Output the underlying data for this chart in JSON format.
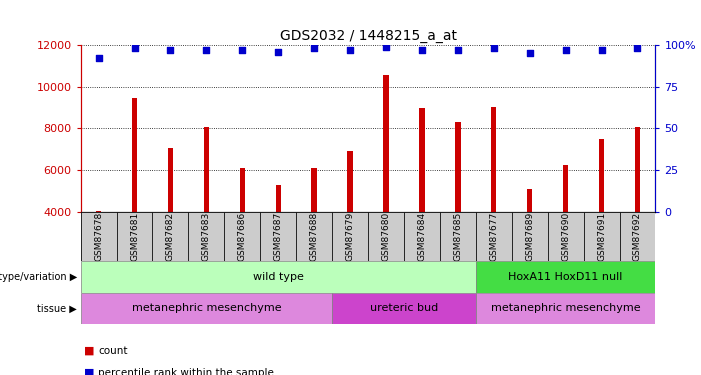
{
  "title": "GDS2032 / 1448215_a_at",
  "samples": [
    "GSM87678",
    "GSM87681",
    "GSM87682",
    "GSM87683",
    "GSM87686",
    "GSM87687",
    "GSM87688",
    "GSM87679",
    "GSM87680",
    "GSM87684",
    "GSM87685",
    "GSM87677",
    "GSM87689",
    "GSM87690",
    "GSM87691",
    "GSM87692"
  ],
  "counts": [
    4050,
    9450,
    7050,
    8050,
    6100,
    5300,
    6100,
    6900,
    10550,
    9000,
    8300,
    9050,
    5100,
    6250,
    7500,
    8050
  ],
  "percentile_ranks": [
    92,
    98,
    97,
    97,
    97,
    96,
    98,
    97,
    99,
    97,
    97,
    98,
    95,
    97,
    97,
    98
  ],
  "ylim_left": [
    4000,
    12000
  ],
  "ylim_right": [
    0,
    100
  ],
  "yticks_left": [
    4000,
    6000,
    8000,
    10000,
    12000
  ],
  "yticks_right": [
    0,
    25,
    50,
    75,
    100
  ],
  "bar_color": "#cc0000",
  "dot_color": "#0000cc",
  "background_color": "#ffffff",
  "genotype_groups": [
    {
      "label": "wild type",
      "start": 0,
      "end": 10,
      "color": "#bbffbb"
    },
    {
      "label": "HoxA11 HoxD11 null",
      "start": 11,
      "end": 15,
      "color": "#44dd44"
    }
  ],
  "tissue_groups": [
    {
      "label": "metanephric mesenchyme",
      "start": 0,
      "end": 6,
      "color": "#dd88dd"
    },
    {
      "label": "ureteric bud",
      "start": 7,
      "end": 10,
      "color": "#cc44cc"
    },
    {
      "label": "metanephric mesenchyme",
      "start": 11,
      "end": 15,
      "color": "#dd88dd"
    }
  ],
  "legend_count_color": "#cc0000",
  "legend_rank_color": "#0000cc",
  "left_axis_color": "#cc0000",
  "right_axis_color": "#0000cc",
  "xlabel_bg_color": "#cccccc"
}
